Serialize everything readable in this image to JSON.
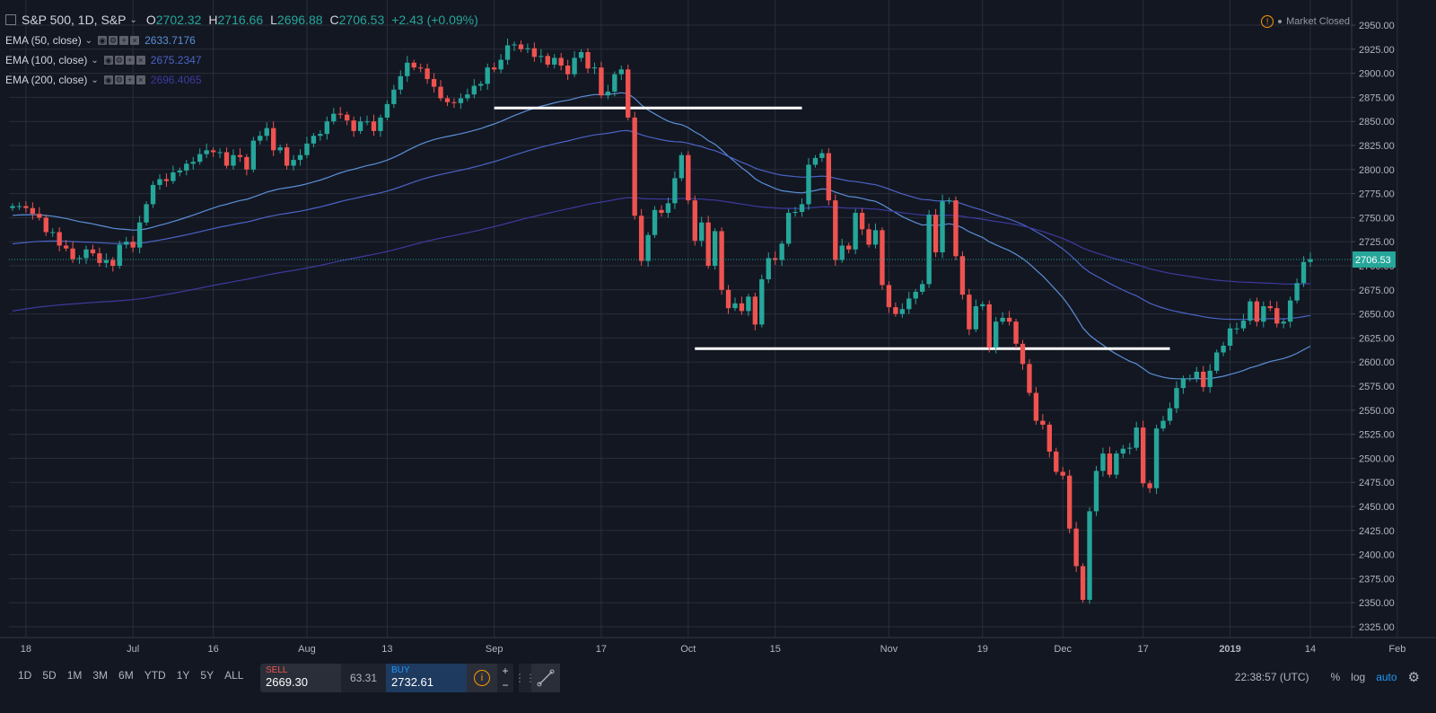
{
  "header": {
    "symbol": "S&P 500, 1D, S&P",
    "ohlc": [
      {
        "label": "O",
        "value": "2702.32"
      },
      {
        "label": "H",
        "value": "2716.66"
      },
      {
        "label": "L",
        "value": "2696.88"
      },
      {
        "label": "C",
        "value": "2706.53"
      }
    ],
    "change": "+2.43 (+0.09%)",
    "market_status": "Market Closed"
  },
  "indicators": [
    {
      "label": "EMA (50, close)",
      "value": "2633.7176",
      "color": "#5b8fd6"
    },
    {
      "label": "EMA (100, close)",
      "value": "2675.2347",
      "color": "#4a63c4"
    },
    {
      "label": "EMA (200, close)",
      "value": "2696.4065",
      "color": "#3d3a9e"
    }
  ],
  "colors": {
    "up": "#26a69a",
    "down": "#ef5350",
    "background": "#131722",
    "grid": "#2a2e39",
    "axis_text": "#b2b5be",
    "last_price_line": "#26a69a"
  },
  "chart_data": {
    "type": "candlestick",
    "ylim": [
      2315,
      2960
    ],
    "yticks": [
      2325,
      2350,
      2375,
      2400,
      2425,
      2450,
      2475,
      2500,
      2525,
      2550,
      2575,
      2600,
      2625,
      2650,
      2675,
      2700,
      2725,
      2750,
      2775,
      2800,
      2825,
      2850,
      2875,
      2900,
      2925,
      2950
    ],
    "x_tick_labels": [
      "18",
      "Jul",
      "16",
      "Aug",
      "13",
      "Sep",
      "17",
      "Oct",
      "15",
      "Nov",
      "19",
      "Dec",
      "17",
      "2019",
      "14",
      "Feb"
    ],
    "last_price": "2706.53",
    "close": [
      2762,
      2762,
      2760,
      2754,
      2750,
      2735,
      2735,
      2721,
      2718,
      2707,
      2708,
      2717,
      2713,
      2703,
      2706,
      2700,
      2722,
      2725,
      2719,
      2745,
      2764,
      2784,
      2790,
      2788,
      2797,
      2799,
      2806,
      2808,
      2816,
      2820,
      2818,
      2818,
      2804,
      2815,
      2813,
      2800,
      2830,
      2835,
      2843,
      2820,
      2823,
      2804,
      2810,
      2815,
      2827,
      2835,
      2837,
      2850,
      2858,
      2857,
      2851,
      2840,
      2850,
      2850,
      2840,
      2854,
      2868,
      2883,
      2897,
      2911,
      2906,
      2905,
      2894,
      2886,
      2874,
      2870,
      2869,
      2874,
      2878,
      2887,
      2889,
      2906,
      2904,
      2914,
      2929,
      2930,
      2925,
      2926,
      2917,
      2918,
      2909,
      2916,
      2908,
      2899,
      2916,
      2922,
      2905,
      2906,
      2877,
      2881,
      2899,
      2904,
      2854,
      2752,
      2705,
      2732,
      2758,
      2755,
      2765,
      2791,
      2815,
      2768,
      2726,
      2745,
      2700,
      2736,
      2675,
      2656,
      2661,
      2653,
      2668,
      2639,
      2686,
      2708,
      2706,
      2723,
      2755,
      2756,
      2764,
      2805,
      2812,
      2817,
      2768,
      2706,
      2721,
      2717,
      2755,
      2738,
      2722,
      2737,
      2680,
      2657,
      2650,
      2655,
      2666,
      2673,
      2681,
      2753,
      2714,
      2767,
      2768,
      2710,
      2670,
      2634,
      2658,
      2660,
      2615,
      2642,
      2646,
      2642,
      2619,
      2598,
      2568,
      2539,
      2535,
      2507,
      2486,
      2482,
      2427,
      2388,
      2353,
      2445,
      2487,
      2505,
      2483,
      2505,
      2510,
      2511,
      2532,
      2474,
      2469,
      2531,
      2539,
      2552,
      2573,
      2583,
      2583,
      2590,
      2574,
      2591,
      2610,
      2617,
      2635,
      2635,
      2643,
      2663,
      2642,
      2658,
      2656,
      2640,
      2642,
      2664,
      2682,
      2704,
      2707
    ]
  },
  "bottom": {
    "ranges": [
      "1D",
      "5D",
      "1M",
      "3M",
      "6M",
      "YTD",
      "1Y",
      "5Y",
      "ALL"
    ],
    "sell_label": "SELL",
    "sell_value": "2669.30",
    "spread": "63.31",
    "buy_label": "BUY",
    "buy_value": "2732.61",
    "time": "22:38:57 (UTC)",
    "percent": "%",
    "log": "log",
    "auto": "auto"
  }
}
